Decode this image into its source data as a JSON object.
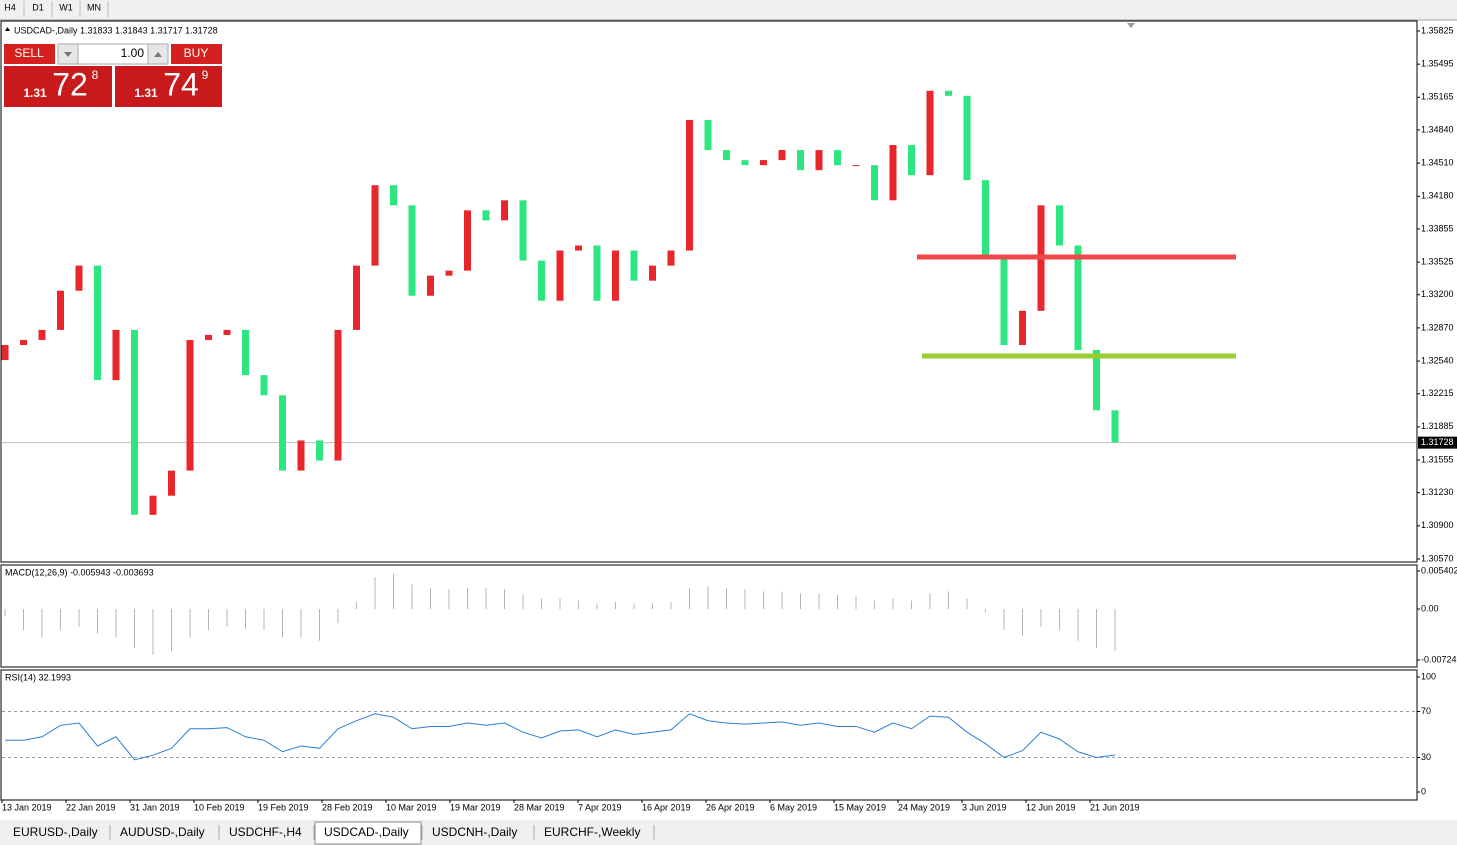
{
  "toolbar": {
    "timeframes": [
      "H4",
      "D1",
      "W1",
      "MN"
    ]
  },
  "trade_panel": {
    "sell_label": "SELL",
    "lot": "1.00",
    "buy_label": "BUY",
    "sell": {
      "prefix": "1.31",
      "big": "72",
      "small": "8"
    },
    "buy": {
      "prefix": "1.31",
      "big": "74",
      "small": "9"
    }
  },
  "x_labels": [
    "13 Jan 2019",
    "22 Jan 2019",
    "31 Jan 2019",
    "10 Feb 2019",
    "19 Feb 2019",
    "28 Feb 2019",
    "10 Mar 2019",
    "19 Mar 2019",
    "28 Mar 2019",
    "7 Apr 2019",
    "16 Apr 2019",
    "26 Apr 2019",
    "6 May 2019",
    "15 May 2019",
    "24 May 2019",
    "3 Jun 2019",
    "12 Jun 2019",
    "21 Jun 2019"
  ],
  "chart_data": [
    {
      "type": "candlestick",
      "title": "USDCAD-,Daily  1.31833 1.31843 1.31717 1.31728",
      "up_color": "#e8262b",
      "down_color": "#2ee67f",
      "current_price": 1.31728,
      "open": [
        1.3255,
        1.327,
        1.3275,
        1.3285,
        1.3324,
        1.3349,
        1.3235,
        1.3285,
        1.3101,
        1.312,
        1.3145,
        1.3275,
        1.328,
        1.3285,
        1.324,
        1.322,
        1.3145,
        1.3175,
        1.3155,
        1.3285,
        1.3349,
        1.3429,
        1.3409,
        1.3319,
        1.3339,
        1.3344,
        1.3404,
        1.3394,
        1.3414,
        1.3354,
        1.3314,
        1.3364,
        1.3369,
        1.3314,
        1.3364,
        1.3334,
        1.3349,
        1.3364,
        1.3494,
        1.3464,
        1.3454,
        1.3449,
        1.3454,
        1.3464,
        1.3444,
        1.3464,
        1.3449,
        1.3449,
        1.3414,
        1.3469,
        1.3439,
        1.3523,
        1.3518,
        1.3434,
        1.3359,
        1.327,
        1.3304,
        1.3409,
        1.3369,
        1.3265,
        1.3205
      ],
      "close": [
        1.327,
        1.3275,
        1.3285,
        1.3324,
        1.3349,
        1.3235,
        1.3285,
        1.3101,
        1.312,
        1.3145,
        1.3275,
        1.328,
        1.3285,
        1.324,
        1.322,
        1.3145,
        1.3175,
        1.3155,
        1.3285,
        1.3349,
        1.3429,
        1.3409,
        1.3319,
        1.3339,
        1.3344,
        1.3404,
        1.3394,
        1.3414,
        1.3354,
        1.3314,
        1.3364,
        1.3369,
        1.3314,
        1.3364,
        1.3334,
        1.3349,
        1.3364,
        1.3494,
        1.3464,
        1.3454,
        1.3449,
        1.3454,
        1.3464,
        1.3444,
        1.3464,
        1.3449,
        1.3449,
        1.3414,
        1.3469,
        1.3439,
        1.3523,
        1.3518,
        1.3434,
        1.3359,
        1.327,
        1.3304,
        1.3409,
        1.3369,
        1.3265,
        1.3205,
        1.3173
      ],
      "ylim": [
        1.3057,
        1.35825
      ],
      "yticks": [
        1.35825,
        1.35495,
        1.35165,
        {
          "value": 1.3484,
          "label": "1.34840"
        },
        {
          "value": 1.3451,
          "label": "1.34510"
        },
        {
          "value": 1.3418,
          "label": "1.34180"
        },
        1.33855,
        1.33525,
        {
          "value": 1.332,
          "label": "1.33200"
        },
        {
          "value": 1.3287,
          "label": "1.32870"
        },
        {
          "value": 1.3254,
          "label": "1.32540"
        },
        1.32215,
        1.31885,
        1.31555,
        {
          "value": 1.3123,
          "label": "1.31230"
        },
        {
          "value": 1.309,
          "label": "1.30900"
        },
        {
          "value": 1.3057,
          "label": "1.30570"
        }
      ]
    },
    {
      "type": "bar",
      "title": "MACD(12,26,9) -0.005943 -0.003693",
      "color": "#b4b4b4",
      "values": [
        -0.001,
        -0.003,
        -0.004,
        -0.003,
        -0.0025,
        -0.0035,
        -0.004,
        -0.0055,
        -0.0065,
        -0.006,
        -0.004,
        -0.003,
        -0.0025,
        -0.0028,
        -0.003,
        -0.004,
        -0.004,
        -0.0045,
        -0.002,
        0.001,
        0.0045,
        0.005,
        0.0035,
        0.003,
        0.0028,
        0.003,
        0.003,
        0.0028,
        0.002,
        0.0015,
        0.0015,
        0.0012,
        0.0008,
        0.001,
        0.0008,
        0.0008,
        0.001,
        0.003,
        0.0032,
        0.003,
        0.0028,
        0.0025,
        0.0025,
        0.0022,
        0.0022,
        0.002,
        0.0018,
        0.0012,
        0.0015,
        0.0012,
        0.0022,
        0.0025,
        0.0015,
        -0.0005,
        -0.003,
        -0.0038,
        -0.0025,
        -0.003,
        -0.0045,
        -0.0055,
        -0.005943
      ],
      "ylim": [
        -0.00724,
        0.005402
      ],
      "yticks": [
        0.005402,
        {
          "value": 0,
          "label": "0.00"
        },
        -0.00724
      ]
    },
    {
      "type": "line",
      "title": "RSI(14) 32.1993",
      "color": "#2a7fd4",
      "values": [
        45,
        45,
        48,
        58,
        60,
        40,
        48,
        28,
        32,
        38,
        55,
        55,
        56,
        48,
        45,
        35,
        40,
        38,
        55,
        62,
        68,
        65,
        55,
        57,
        57,
        60,
        58,
        60,
        52,
        47,
        53,
        54,
        48,
        54,
        50,
        52,
        54,
        68,
        62,
        60,
        59,
        60,
        61,
        58,
        60,
        57,
        57,
        52,
        60,
        55,
        66,
        65,
        52,
        42,
        30,
        36,
        52,
        46,
        35,
        30,
        32.1993
      ],
      "ylim": [
        0,
        100
      ],
      "yticks": [
        100,
        70,
        30,
        0
      ]
    }
  ],
  "tabs": [
    "EURUSD-,Daily",
    "AUDUSD-,Daily",
    "USDCHF-,H4",
    "USDCAD-,Daily",
    "USDCNH-,Daily",
    "EURCHF-,Weekly"
  ],
  "active_tab": 3
}
